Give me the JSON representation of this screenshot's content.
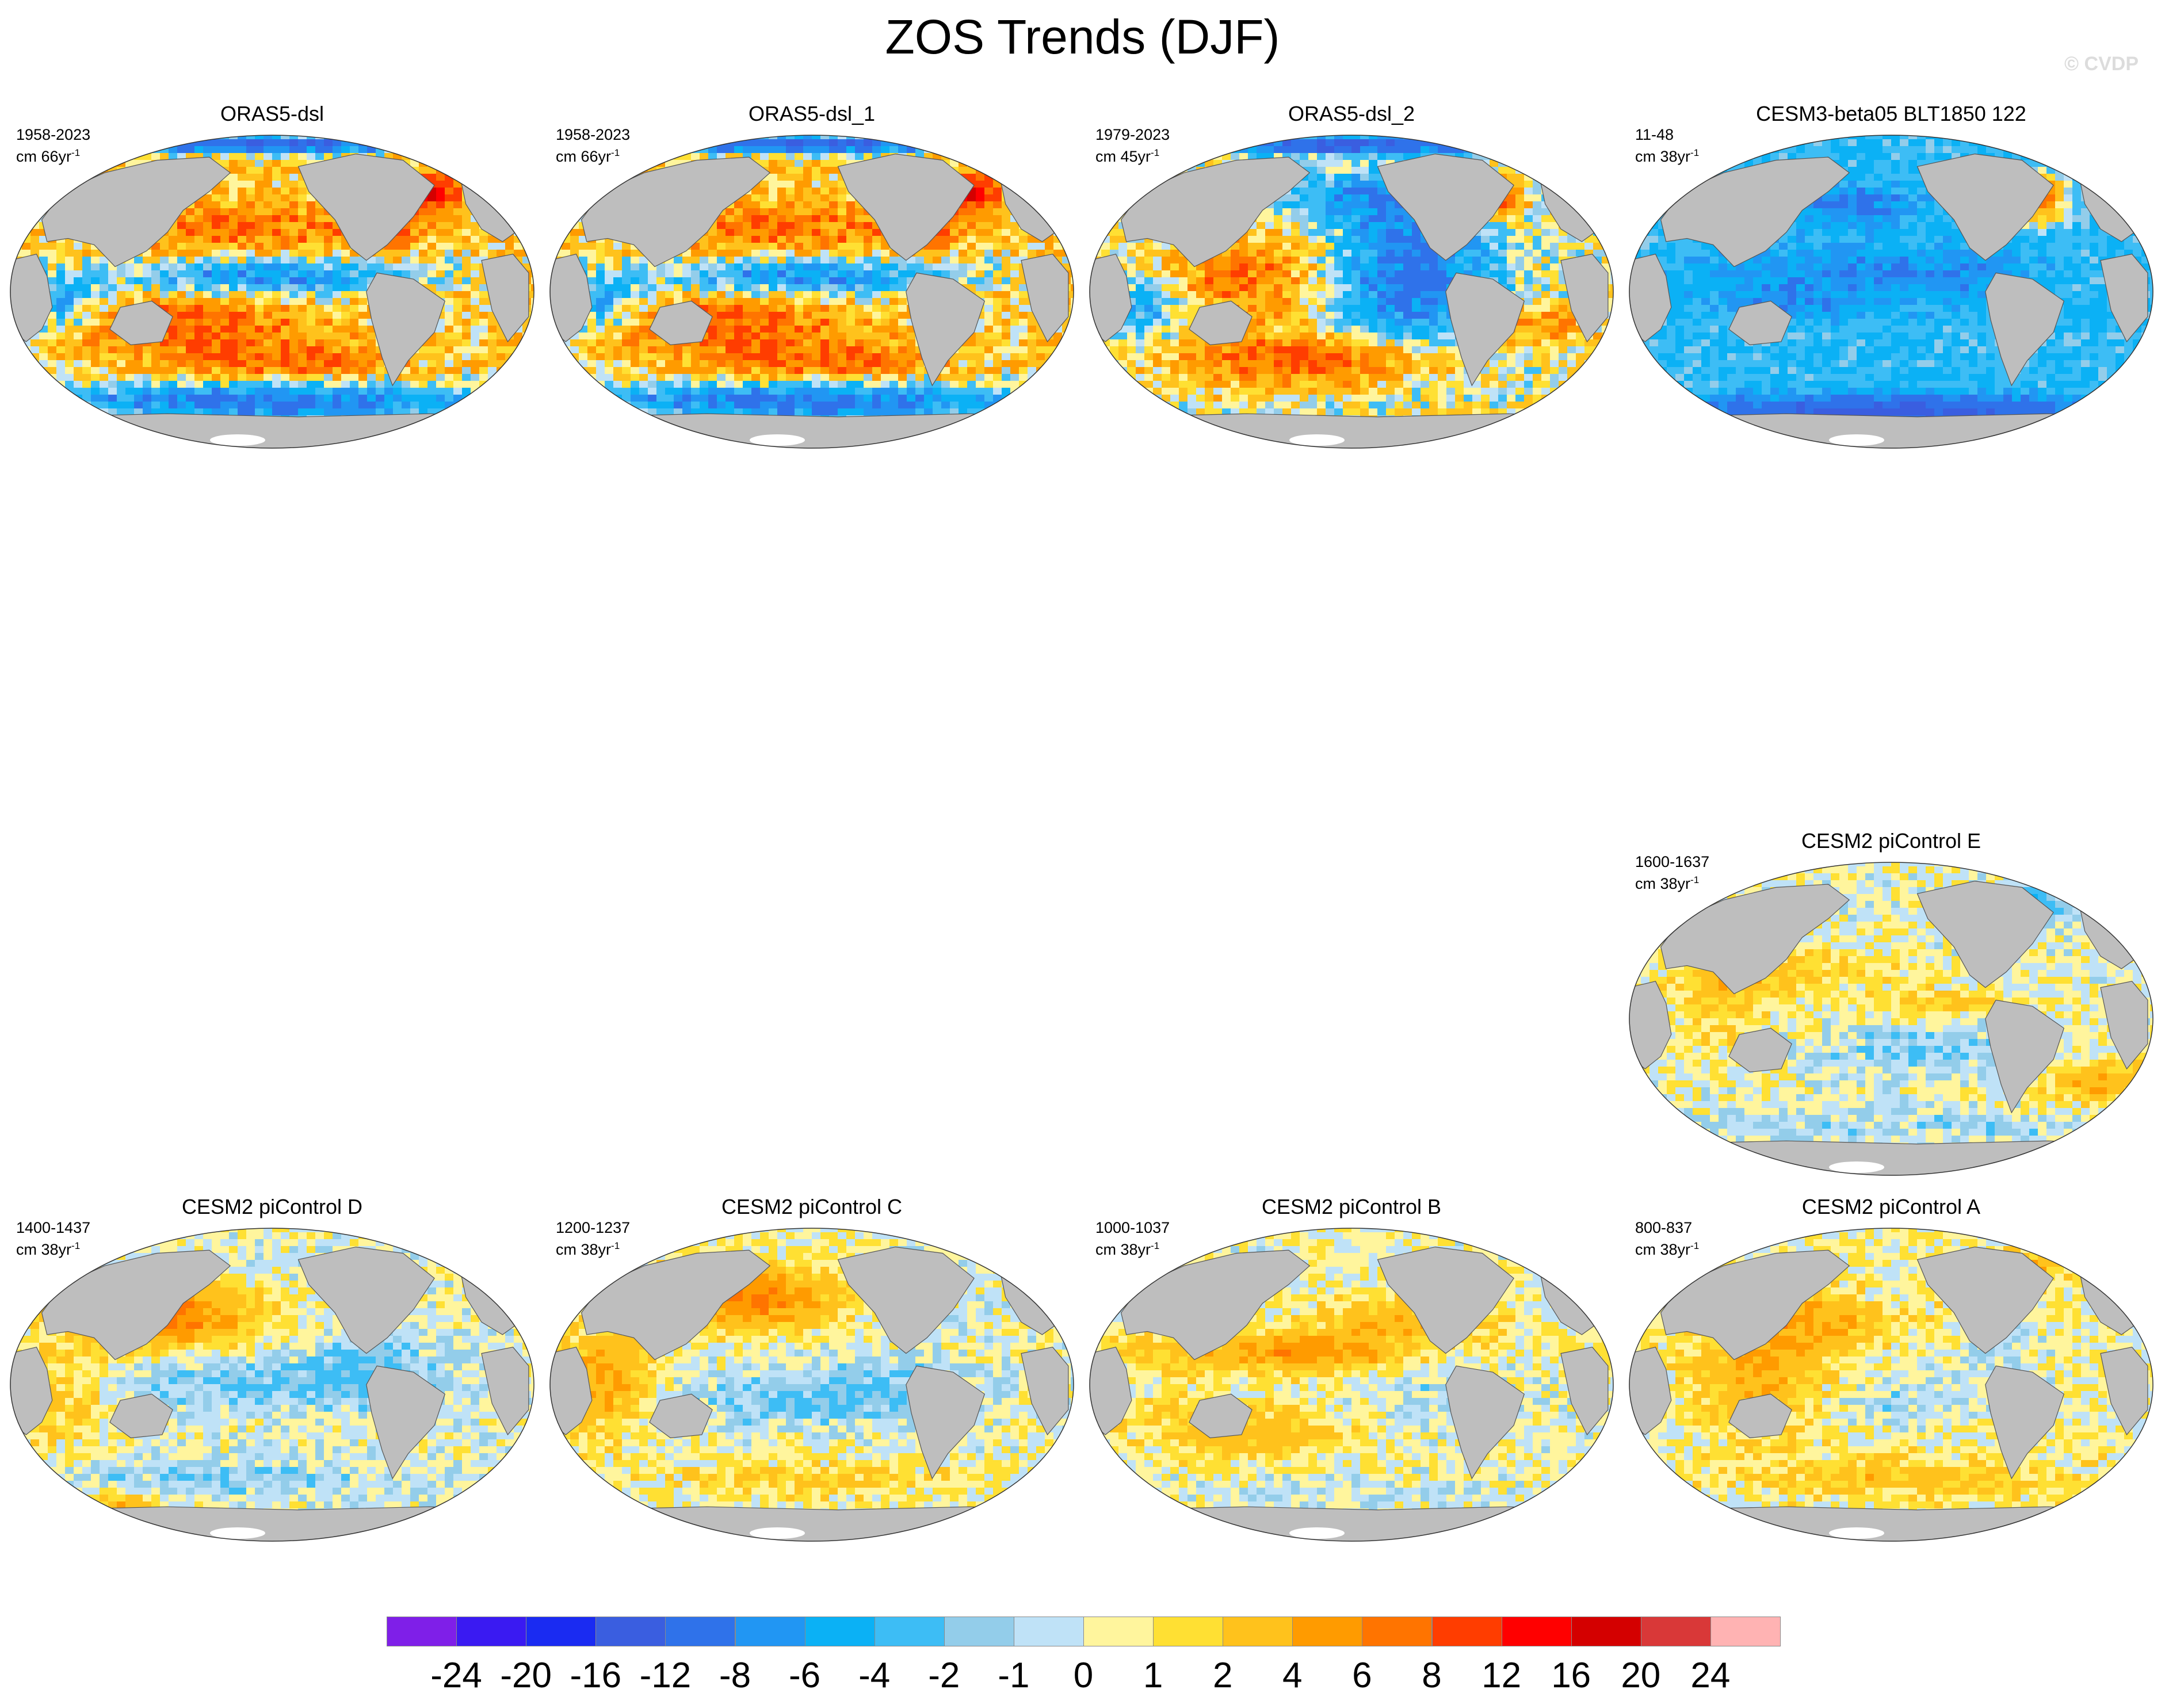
{
  "figure": {
    "title": "ZOS Trends (DJF)",
    "watermark": "© CVDP"
  },
  "panels": [
    {
      "id": "p1",
      "title": "ORAS5-dsl",
      "years": "1958-2023",
      "units_prefix": "cm 66yr",
      "units_sup": "-1",
      "pattern": "oras",
      "seed": 11
    },
    {
      "id": "p2",
      "title": "ORAS5-dsl_1",
      "years": "1958-2023",
      "units_prefix": "cm 66yr",
      "units_sup": "-1",
      "pattern": "oras",
      "seed": 11
    },
    {
      "id": "p3",
      "title": "ORAS5-dsl_2",
      "years": "1979-2023",
      "units_prefix": "cm 45yr",
      "units_sup": "-1",
      "pattern": "oras2",
      "seed": 29
    },
    {
      "id": "p4",
      "title": "CESM3-beta05 BLT1850 122",
      "years": "11-48",
      "units_prefix": "cm 38yr",
      "units_sup": "-1",
      "pattern": "cesm3",
      "seed": 41
    },
    {
      "id": "p5",
      "title": "CESM2 piControl E",
      "years": "1600-1637",
      "units_prefix": "cm 38yr",
      "units_sup": "-1",
      "pattern": "cesm2e",
      "seed": 53
    },
    {
      "id": "p6",
      "title": "CESM2 piControl D",
      "years": "1400-1437",
      "units_prefix": "cm 38yr",
      "units_sup": "-1",
      "pattern": "cesm2d",
      "seed": 67
    },
    {
      "id": "p7",
      "title": "CESM2 piControl C",
      "years": "1200-1237",
      "units_prefix": "cm 38yr",
      "units_sup": "-1",
      "pattern": "cesm2c",
      "seed": 73
    },
    {
      "id": "p8",
      "title": "CESM2 piControl B",
      "years": "1000-1037",
      "units_prefix": "cm 38yr",
      "units_sup": "-1",
      "pattern": "cesm2b",
      "seed": 89
    },
    {
      "id": "p9",
      "title": "CESM2 piControl A",
      "years": "800-837",
      "units_prefix": "cm 38yr",
      "units_sup": "-1",
      "pattern": "cesm2a",
      "seed": 97
    }
  ],
  "colorbar": {
    "labels": [
      "-24",
      "-20",
      "-16",
      "-12",
      "-8",
      "-6",
      "-4",
      "-2",
      "-1",
      "0",
      "1",
      "2",
      "4",
      "6",
      "8",
      "12",
      "16",
      "20",
      "24"
    ],
    "colors": [
      "#7f1fe8",
      "#3a1af2",
      "#1a2bf2",
      "#3a5ee0",
      "#2f72ea",
      "#2196f3",
      "#0bb1f5",
      "#3dbdf5",
      "#93cdea",
      "#bfe2f7",
      "#fff59d",
      "#ffe033",
      "#ffc21c",
      "#ff9b00",
      "#ff7400",
      "#ff3d00",
      "#ff0000",
      "#d40000",
      "#d93838",
      "#ffb3b3"
    ]
  },
  "map_style": {
    "land_color": "#bebebe",
    "coast_color": "#555555"
  }
}
